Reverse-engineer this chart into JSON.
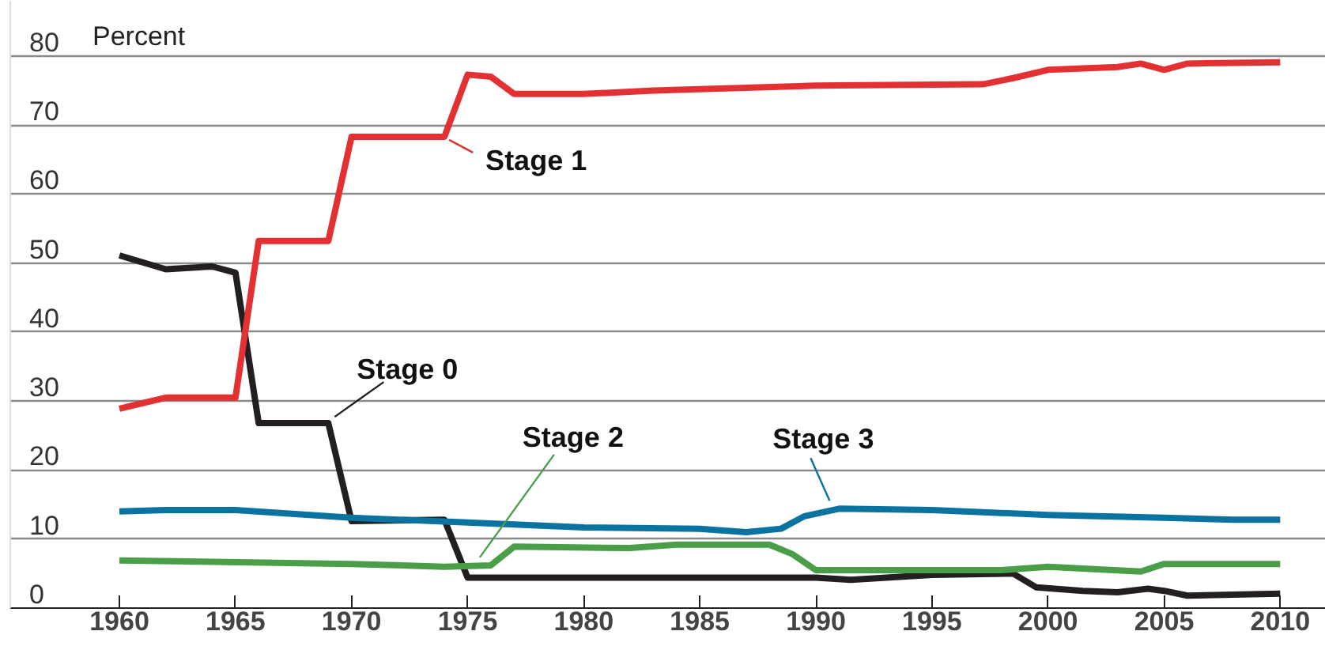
{
  "chart_data": {
    "type": "line",
    "ylabel": "Percent",
    "xlim": [
      1955.3,
      2012.1
    ],
    "ylim": [
      0,
      88
    ],
    "xticks": [
      1960,
      1965,
      1970,
      1975,
      1980,
      1985,
      1990,
      1995,
      2000,
      2005,
      2010
    ],
    "yticks": [
      0,
      10,
      20,
      30,
      40,
      50,
      60,
      70,
      80
    ],
    "grid": "y",
    "marker": "none",
    "line_style": "solid",
    "series": [
      {
        "name": "Stage 0",
        "color": "#231f20",
        "x": [
          1960,
          1962,
          1964,
          1965,
          1966,
          1969,
          1970,
          1974,
          1975,
          1990,
          1991.5,
          1995,
          1998.5,
          1999.5,
          2001.5,
          2003,
          2004.3,
          2005,
          2006,
          2010
        ],
        "values": [
          51.1,
          49.1,
          49.5,
          48.6,
          26.8,
          26.8,
          12.6,
          12.8,
          4.4,
          4.4,
          4.1,
          4.8,
          5.0,
          3.0,
          2.5,
          2.3,
          2.8,
          2.5,
          1.8,
          2.1
        ]
      },
      {
        "name": "Stage 1",
        "color": "#e33133",
        "x": [
          1960,
          1962,
          1965,
          1966,
          1969,
          1970,
          1974,
          1975,
          1976,
          1977,
          1980,
          1983,
          1990,
          1997.2,
          1998.5,
          2000,
          2003,
          2004,
          2005,
          2006,
          2010
        ],
        "values": [
          28.9,
          30.5,
          30.5,
          53.2,
          53.2,
          68.3,
          68.3,
          77.3,
          77.0,
          74.5,
          74.5,
          75.0,
          75.7,
          75.9,
          76.8,
          78.0,
          78.4,
          78.9,
          78.0,
          78.9,
          79.1
        ]
      },
      {
        "name": "Stage 2",
        "color": "#4a9e48",
        "x": [
          1960,
          1970,
          1974,
          1976,
          1977,
          1982,
          1984,
          1988,
          1989,
          1990,
          1995,
          1998,
          2000,
          2004,
          2005,
          2010
        ],
        "values": [
          6.9,
          6.4,
          6.0,
          6.2,
          8.9,
          8.7,
          9.2,
          9.2,
          7.8,
          5.5,
          5.5,
          5.5,
          6.0,
          5.3,
          6.4,
          6.4
        ]
      },
      {
        "name": "Stage 3",
        "color": "#0a73a0",
        "x": [
          1960,
          1962,
          1965,
          1970,
          1975,
          1980,
          1985,
          1987,
          1988.5,
          1989.5,
          1991,
          1995,
          2000,
          2005,
          2008,
          2010
        ],
        "values": [
          14.0,
          14.2,
          14.2,
          13.1,
          12.4,
          11.7,
          11.5,
          11.0,
          11.5,
          13.3,
          14.4,
          14.2,
          13.5,
          13.1,
          12.8,
          12.8
        ]
      }
    ]
  }
}
